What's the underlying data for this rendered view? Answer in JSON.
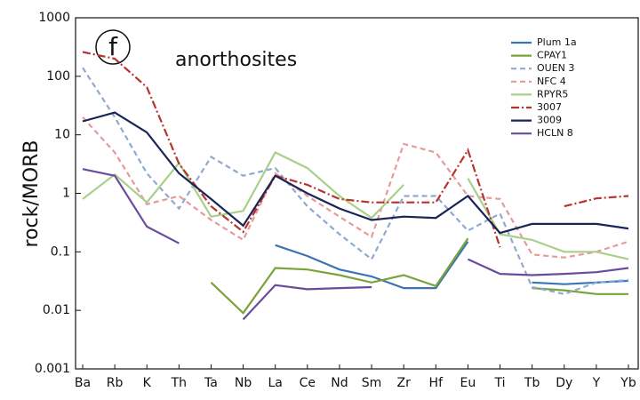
{
  "chart_data": {
    "type": "line",
    "y_label": "rock/MORB",
    "panel_label": "f",
    "annotation": "anorthosites",
    "log_scale": true,
    "ylim": [
      0.001,
      1000
    ],
    "yticks": [
      0.001,
      0.01,
      0.1,
      1,
      10,
      100,
      1000
    ],
    "categories": [
      "Ba",
      "Rb",
      "K",
      "Th",
      "Ta",
      "Nb",
      "La",
      "Ce",
      "Nd",
      "Sm",
      "Zr",
      "Hf",
      "Eu",
      "Ti",
      "Tb",
      "Dy",
      "Y",
      "Yb"
    ],
    "series": [
      {
        "name": "Plum 1a",
        "color": "#3a75b0",
        "dash": "solid",
        "values": [
          null,
          null,
          null,
          null,
          null,
          null,
          0.13,
          0.085,
          0.05,
          0.038,
          0.024,
          0.024,
          0.15,
          null,
          0.03,
          0.028,
          0.03,
          0.032
        ]
      },
      {
        "name": "CPAY1",
        "color": "#7aa33a",
        "dash": "solid",
        "values": [
          null,
          null,
          null,
          null,
          0.03,
          0.009,
          0.053,
          0.05,
          0.04,
          0.03,
          0.04,
          0.026,
          0.17,
          null,
          0.024,
          0.022,
          0.019,
          0.019
        ]
      },
      {
        "name": "OUEN 3",
        "color": "#8fa9d0",
        "dash": "dashed",
        "values": [
          140,
          20,
          2.2,
          0.55,
          4.2,
          2,
          2.7,
          0.6,
          0.2,
          0.075,
          0.9,
          0.9,
          0.23,
          0.45,
          0.025,
          0.019,
          0.03,
          0.033
        ]
      },
      {
        "name": "NFC 4",
        "color": "#e89a9a",
        "dash": "dashed",
        "values": [
          20,
          5,
          0.65,
          0.9,
          0.35,
          0.16,
          2.2,
          0.9,
          0.4,
          0.18,
          7,
          5,
          0.9,
          0.8,
          0.09,
          0.08,
          0.1,
          0.15
        ]
      },
      {
        "name": "RPYR5",
        "color": "#a8d08a",
        "dash": "solid",
        "values": [
          0.8,
          2.1,
          0.7,
          3.3,
          0.4,
          0.5,
          5,
          2.7,
          0.9,
          0.38,
          1.4,
          null,
          1.8,
          0.2,
          0.16,
          0.1,
          0.1,
          0.075
        ]
      },
      {
        "name": "3007",
        "color": "#b5342e",
        "dash": "dashdot",
        "values": [
          260,
          200,
          65,
          3.2,
          0.6,
          0.22,
          2,
          1.4,
          0.8,
          0.7,
          0.7,
          0.7,
          5.5,
          0.12,
          null,
          0.6,
          0.82,
          0.9
        ]
      },
      {
        "name": "3009",
        "color": "#1a2456",
        "dash": "solid",
        "values": [
          17,
          24,
          11,
          2.2,
          0.8,
          0.28,
          2,
          1,
          0.55,
          0.35,
          0.4,
          0.38,
          0.9,
          0.21,
          0.3,
          0.3,
          0.3,
          0.25
        ]
      },
      {
        "name": "HCLN 8",
        "color": "#6a4c9c",
        "dash": "solid",
        "values": [
          2.6,
          2,
          0.27,
          0.14,
          null,
          0.007,
          0.027,
          0.023,
          0.024,
          0.025,
          null,
          null,
          0.075,
          0.042,
          0.04,
          0.042,
          0.045,
          0.053
        ]
      }
    ]
  }
}
